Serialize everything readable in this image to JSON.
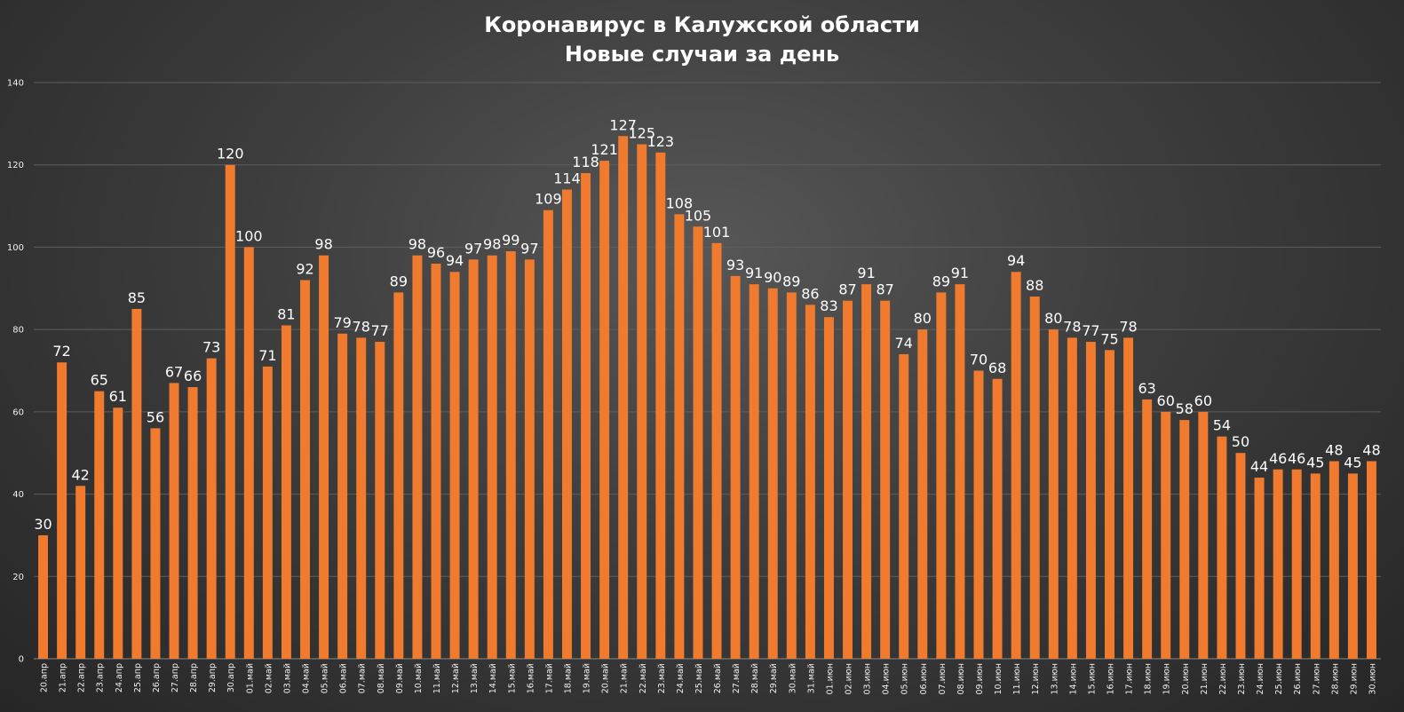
{
  "chart_data": {
    "type": "bar",
    "title": "Коронавирус в Калужской области",
    "subtitle": "Новые случаи за день",
    "xlabel": "",
    "ylabel": "",
    "ylim": [
      0,
      140
    ],
    "yticks": [
      0,
      20,
      40,
      60,
      80,
      100,
      120,
      140
    ],
    "grid": true,
    "legend": "none",
    "colors": {
      "bar": "#f07b2e",
      "grid": "#5e5e5e",
      "text": "#ffffff",
      "tick": "#f0f0f0"
    },
    "categories": [
      "20.апр",
      "21.апр",
      "22.апр",
      "23.апр",
      "24.апр",
      "25.апр",
      "26.апр",
      "27.апр",
      "28.апр",
      "29.апр",
      "30.апр",
      "01.май",
      "02.май",
      "03.май",
      "04.май",
      "05.май",
      "06.май",
      "07.май",
      "08.май",
      "09.май",
      "10.май",
      "11.май",
      "12.май",
      "13.май",
      "14.май",
      "15.май",
      "16.май",
      "17.май",
      "18.май",
      "19.май",
      "20.май",
      "21.май",
      "22.май",
      "23.май",
      "24.май",
      "25.май",
      "26.май",
      "27.май",
      "28.май",
      "29.май",
      "30.май",
      "31.май",
      "01.июн",
      "02.июн",
      "03.июн",
      "04.июн",
      "05.июн",
      "06.июн",
      "07.июн",
      "08.июн",
      "09.июн",
      "10.июн",
      "11.июн",
      "12.июн",
      "13.июн",
      "14.июн",
      "15.июн",
      "16.июн",
      "17.июн",
      "18.июн",
      "19.июн",
      "20.июн",
      "21.июн",
      "22.июн",
      "23.июн",
      "24.июн",
      "25.июн",
      "26.июн",
      "27.июн",
      "28.июн",
      "29.июн",
      "30.июн"
    ],
    "values": [
      30,
      72,
      42,
      65,
      61,
      85,
      56,
      67,
      66,
      73,
      120,
      100,
      71,
      81,
      92,
      98,
      79,
      78,
      77,
      89,
      98,
      96,
      94,
      97,
      98,
      99,
      97,
      109,
      114,
      118,
      121,
      127,
      125,
      123,
      108,
      105,
      101,
      93,
      91,
      90,
      89,
      86,
      83,
      87,
      91,
      87,
      74,
      80,
      89,
      91,
      70,
      68,
      94,
      88,
      80,
      78,
      77,
      75,
      78,
      63,
      60,
      58,
      60,
      54,
      50,
      44,
      46,
      46,
      45,
      48,
      45,
      48
    ]
  }
}
